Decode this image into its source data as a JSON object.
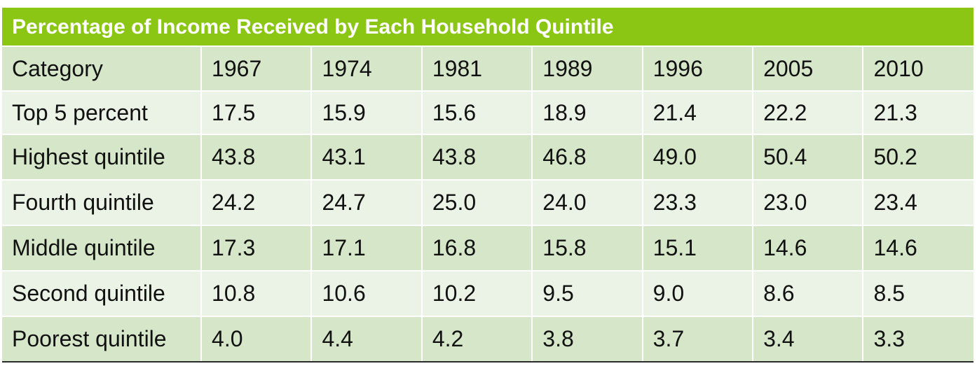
{
  "chart_data": {
    "type": "table",
    "title": "Percentage of Income Received by Each Household Quintile",
    "columns": [
      "Category",
      "1967",
      "1974",
      "1981",
      "1989",
      "1996",
      "2005",
      "2010"
    ],
    "rows": [
      {
        "label": "Top 5 percent",
        "values": [
          "17.5",
          "15.9",
          "15.6",
          "18.9",
          "21.4",
          "22.2",
          "21.3"
        ]
      },
      {
        "label": "Highest quintile",
        "values": [
          "43.8",
          "43.1",
          "43.8",
          "46.8",
          "49.0",
          "50.4",
          "50.2"
        ]
      },
      {
        "label": "Fourth quintile",
        "values": [
          "24.2",
          "24.7",
          "25.0",
          "24.0",
          "23.3",
          "23.0",
          "23.4"
        ]
      },
      {
        "label": "Middle quintile",
        "values": [
          "17.3",
          "17.1",
          "16.8",
          "15.8",
          "15.1",
          "14.6",
          "14.6"
        ]
      },
      {
        "label": "Second quintile",
        "values": [
          "10.8",
          "10.6",
          "10.2",
          "9.5",
          "9.0",
          "8.6",
          "8.5"
        ]
      },
      {
        "label": "Poorest quintile",
        "values": [
          "4.0",
          "4.4",
          "4.2",
          "3.8",
          "3.7",
          "3.4",
          "3.3"
        ]
      }
    ]
  },
  "colors": {
    "title_bar": "#8cc614",
    "title_text": "#ffffff",
    "row_dark": "#d6e6c9",
    "row_light": "#ebf3e6",
    "bottom_rule": "#2a2a2a"
  }
}
